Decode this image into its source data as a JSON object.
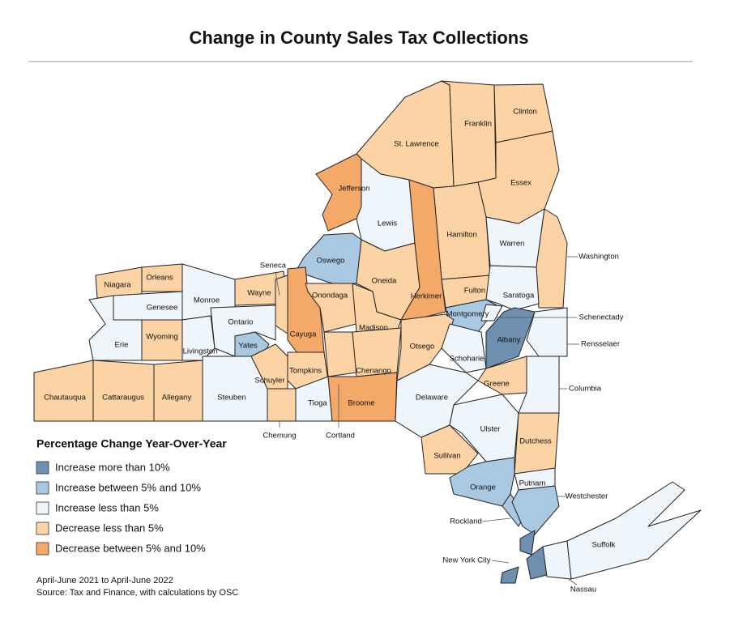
{
  "title": "Change in County Sales Tax Collections",
  "legend": {
    "title": "Percentage Change Year-Over-Year",
    "items": [
      {
        "label": "Increase more than 10%",
        "color": "#6f8fb1"
      },
      {
        "label": "Increase between 5% and 10%",
        "color": "#a9c8e1"
      },
      {
        "label": "Increase less than 5%",
        "color": "#eef5fb"
      },
      {
        "label": "Decrease less than 5%",
        "color": "#fbd3a4"
      },
      {
        "label": "Decrease between 5% and 10%",
        "color": "#f4a968"
      }
    ]
  },
  "counties": [
    {
      "name": "St. Lawrence",
      "category": 3
    },
    {
      "name": "Franklin",
      "category": 3
    },
    {
      "name": "Clinton",
      "category": 3
    },
    {
      "name": "Essex",
      "category": 3
    },
    {
      "name": "Jefferson",
      "category": 4
    },
    {
      "name": "Lewis",
      "category": 2
    },
    {
      "name": "Hamilton",
      "category": 3
    },
    {
      "name": "Warren",
      "category": 2
    },
    {
      "name": "Washington",
      "category": 3
    },
    {
      "name": "Oswego",
      "category": 1
    },
    {
      "name": "Oneida",
      "category": 3
    },
    {
      "name": "Herkimer",
      "category": 4
    },
    {
      "name": "Fulton",
      "category": 3
    },
    {
      "name": "Saratoga",
      "category": 2
    },
    {
      "name": "Niagara",
      "category": 3
    },
    {
      "name": "Orleans",
      "category": 3
    },
    {
      "name": "Monroe",
      "category": 2
    },
    {
      "name": "Wayne",
      "category": 3
    },
    {
      "name": "Seneca",
      "category": 3
    },
    {
      "name": "Cayuga",
      "category": 4
    },
    {
      "name": "Onondaga",
      "category": 3
    },
    {
      "name": "Madison",
      "category": 3
    },
    {
      "name": "Montgomery",
      "category": 1
    },
    {
      "name": "Schenectady",
      "category": 2
    },
    {
      "name": "Albany",
      "category": 0
    },
    {
      "name": "Rensselaer",
      "category": 2
    },
    {
      "name": "Genesee",
      "category": 2
    },
    {
      "name": "Erie",
      "category": 2
    },
    {
      "name": "Wyoming",
      "category": 3
    },
    {
      "name": "Livingston",
      "category": 2
    },
    {
      "name": "Ontario",
      "category": 2
    },
    {
      "name": "Yates",
      "category": 1
    },
    {
      "name": "Schuyler",
      "category": 3
    },
    {
      "name": "Tompkins",
      "category": 3
    },
    {
      "name": "Cortland",
      "category": 3
    },
    {
      "name": "Chenango",
      "category": 3
    },
    {
      "name": "Otsego",
      "category": 3
    },
    {
      "name": "Schoharie",
      "category": 2
    },
    {
      "name": "Greene",
      "category": 3
    },
    {
      "name": "Columbia",
      "category": 2
    },
    {
      "name": "Chautauqua",
      "category": 3
    },
    {
      "name": "Cattaraugus",
      "category": 3
    },
    {
      "name": "Allegany",
      "category": 3
    },
    {
      "name": "Steuben",
      "category": 2
    },
    {
      "name": "Chemung",
      "category": 3
    },
    {
      "name": "Tioga",
      "category": 2
    },
    {
      "name": "Broome",
      "category": 4
    },
    {
      "name": "Delaware",
      "category": 2
    },
    {
      "name": "Ulster",
      "category": 2
    },
    {
      "name": "Dutchess",
      "category": 3
    },
    {
      "name": "Sullivan",
      "category": 3
    },
    {
      "name": "Orange",
      "category": 1
    },
    {
      "name": "Putnam",
      "category": 2
    },
    {
      "name": "Rockland",
      "category": 1
    },
    {
      "name": "Westchester",
      "category": 1
    },
    {
      "name": "New York City",
      "category": 0
    },
    {
      "name": "Nassau",
      "category": 2
    },
    {
      "name": "Suffolk",
      "category": 2
    }
  ],
  "notes": [
    "April-June 2021 to April-June 2022",
    "Source: Tax and Finance, with calculations by OSC"
  ]
}
